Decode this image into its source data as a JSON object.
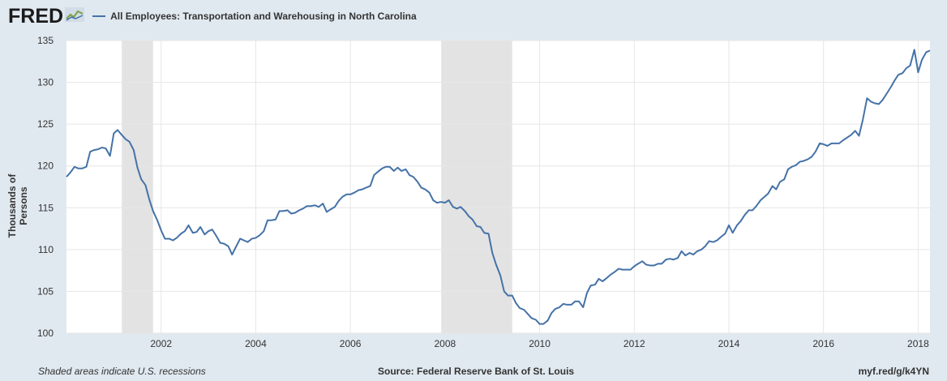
{
  "header": {
    "logo_text": "FRED",
    "legend_label": "All Employees: Transportation and Warehousing in North Carolina"
  },
  "footer": {
    "note": "Shaded areas indicate U.S. recessions",
    "source": "Source: Federal Reserve Bank of St. Louis",
    "link": "myf.red/g/k4YN"
  },
  "colors": {
    "line": "#4572a7",
    "recession": "#e3e3e3",
    "grid": "#e6e6e6",
    "background": "#e1e9f0"
  },
  "chart_data": {
    "type": "line",
    "title": "",
    "xlabel": "",
    "ylabel": "Thousands of Persons",
    "ylim": [
      100,
      135
    ],
    "xlim": [
      2000.0,
      2018.25
    ],
    "yticks": [
      100,
      105,
      110,
      115,
      120,
      125,
      130,
      135
    ],
    "xticks": [
      {
        "value": 2002,
        "label": "2002"
      },
      {
        "value": 2004,
        "label": "2004"
      },
      {
        "value": 2006,
        "label": "2006"
      },
      {
        "value": 2008,
        "label": "2008"
      },
      {
        "value": 2010,
        "label": "2010"
      },
      {
        "value": 2012,
        "label": "2012"
      },
      {
        "value": 2014,
        "label": "2014"
      },
      {
        "value": 2016,
        "label": "2016"
      },
      {
        "value": 2018,
        "label": "2018"
      }
    ],
    "recessions": [
      [
        2001.17,
        2001.83
      ],
      [
        2007.92,
        2009.42
      ]
    ],
    "grid": true,
    "series": [
      {
        "name": "All Employees: Transportation and Warehousing in North Carolina",
        "points": [
          [
            2000.0,
            118.7
          ],
          [
            2000.08,
            119.2
          ],
          [
            2000.17,
            119.9
          ],
          [
            2000.25,
            119.7
          ],
          [
            2000.33,
            119.7
          ],
          [
            2000.42,
            119.9
          ],
          [
            2000.5,
            121.7
          ],
          [
            2000.58,
            121.9
          ],
          [
            2000.67,
            122.0
          ],
          [
            2000.75,
            122.2
          ],
          [
            2000.83,
            122.1
          ],
          [
            2000.92,
            121.2
          ],
          [
            2001.0,
            123.9
          ],
          [
            2001.08,
            124.3
          ],
          [
            2001.17,
            123.7
          ],
          [
            2001.25,
            123.2
          ],
          [
            2001.33,
            122.9
          ],
          [
            2001.42,
            121.9
          ],
          [
            2001.5,
            119.8
          ],
          [
            2001.58,
            118.4
          ],
          [
            2001.67,
            117.7
          ],
          [
            2001.75,
            116.0
          ],
          [
            2001.83,
            114.6
          ],
          [
            2001.92,
            113.5
          ],
          [
            2002.0,
            112.3
          ],
          [
            2002.08,
            111.3
          ],
          [
            2002.17,
            111.3
          ],
          [
            2002.25,
            111.1
          ],
          [
            2002.33,
            111.4
          ],
          [
            2002.42,
            111.9
          ],
          [
            2002.5,
            112.2
          ],
          [
            2002.58,
            112.9
          ],
          [
            2002.67,
            112.0
          ],
          [
            2002.75,
            112.1
          ],
          [
            2002.83,
            112.7
          ],
          [
            2002.92,
            111.8
          ],
          [
            2003.0,
            112.2
          ],
          [
            2003.08,
            112.4
          ],
          [
            2003.17,
            111.6
          ],
          [
            2003.25,
            110.8
          ],
          [
            2003.33,
            110.7
          ],
          [
            2003.42,
            110.4
          ],
          [
            2003.5,
            109.4
          ],
          [
            2003.58,
            110.3
          ],
          [
            2003.67,
            111.3
          ],
          [
            2003.75,
            111.1
          ],
          [
            2003.83,
            110.9
          ],
          [
            2003.92,
            111.3
          ],
          [
            2004.0,
            111.4
          ],
          [
            2004.08,
            111.7
          ],
          [
            2004.17,
            112.2
          ],
          [
            2004.25,
            113.5
          ],
          [
            2004.33,
            113.5
          ],
          [
            2004.42,
            113.6
          ],
          [
            2004.5,
            114.6
          ],
          [
            2004.58,
            114.6
          ],
          [
            2004.67,
            114.7
          ],
          [
            2004.75,
            114.3
          ],
          [
            2004.83,
            114.4
          ],
          [
            2004.92,
            114.7
          ],
          [
            2005.0,
            114.9
          ],
          [
            2005.08,
            115.2
          ],
          [
            2005.17,
            115.2
          ],
          [
            2005.25,
            115.3
          ],
          [
            2005.33,
            115.1
          ],
          [
            2005.42,
            115.5
          ],
          [
            2005.5,
            114.5
          ],
          [
            2005.58,
            114.8
          ],
          [
            2005.67,
            115.1
          ],
          [
            2005.75,
            115.8
          ],
          [
            2005.83,
            116.3
          ],
          [
            2005.92,
            116.6
          ],
          [
            2006.0,
            116.6
          ],
          [
            2006.08,
            116.8
          ],
          [
            2006.17,
            117.1
          ],
          [
            2006.25,
            117.2
          ],
          [
            2006.33,
            117.4
          ],
          [
            2006.42,
            117.6
          ],
          [
            2006.5,
            118.9
          ],
          [
            2006.58,
            119.3
          ],
          [
            2006.67,
            119.7
          ],
          [
            2006.75,
            119.9
          ],
          [
            2006.83,
            119.9
          ],
          [
            2006.92,
            119.4
          ],
          [
            2007.0,
            119.8
          ],
          [
            2007.08,
            119.4
          ],
          [
            2007.17,
            119.6
          ],
          [
            2007.25,
            118.9
          ],
          [
            2007.33,
            118.7
          ],
          [
            2007.42,
            118.1
          ],
          [
            2007.5,
            117.4
          ],
          [
            2007.58,
            117.2
          ],
          [
            2007.67,
            116.8
          ],
          [
            2007.75,
            115.9
          ],
          [
            2007.83,
            115.6
          ],
          [
            2007.92,
            115.7
          ],
          [
            2008.0,
            115.6
          ],
          [
            2008.08,
            115.9
          ],
          [
            2008.17,
            115.1
          ],
          [
            2008.25,
            114.9
          ],
          [
            2008.33,
            115.1
          ],
          [
            2008.42,
            114.6
          ],
          [
            2008.5,
            114.0
          ],
          [
            2008.58,
            113.6
          ],
          [
            2008.67,
            112.8
          ],
          [
            2008.75,
            112.7
          ],
          [
            2008.83,
            112.0
          ],
          [
            2008.92,
            111.9
          ],
          [
            2009.0,
            109.6
          ],
          [
            2009.08,
            108.2
          ],
          [
            2009.17,
            106.9
          ],
          [
            2009.25,
            105.0
          ],
          [
            2009.33,
            104.5
          ],
          [
            2009.42,
            104.5
          ],
          [
            2009.5,
            103.6
          ],
          [
            2009.58,
            103.0
          ],
          [
            2009.67,
            102.8
          ],
          [
            2009.75,
            102.3
          ],
          [
            2009.83,
            101.8
          ],
          [
            2009.92,
            101.6
          ],
          [
            2010.0,
            101.1
          ],
          [
            2010.08,
            101.1
          ],
          [
            2010.17,
            101.5
          ],
          [
            2010.25,
            102.4
          ],
          [
            2010.33,
            102.9
          ],
          [
            2010.42,
            103.1
          ],
          [
            2010.5,
            103.5
          ],
          [
            2010.58,
            103.4
          ],
          [
            2010.67,
            103.4
          ],
          [
            2010.75,
            103.8
          ],
          [
            2010.83,
            103.8
          ],
          [
            2010.92,
            103.1
          ],
          [
            2011.0,
            104.8
          ],
          [
            2011.08,
            105.7
          ],
          [
            2011.17,
            105.8
          ],
          [
            2011.25,
            106.5
          ],
          [
            2011.33,
            106.2
          ],
          [
            2011.42,
            106.6
          ],
          [
            2011.5,
            107.0
          ],
          [
            2011.58,
            107.3
          ],
          [
            2011.67,
            107.7
          ],
          [
            2011.75,
            107.6
          ],
          [
            2011.83,
            107.6
          ],
          [
            2011.92,
            107.6
          ],
          [
            2012.0,
            108.0
          ],
          [
            2012.08,
            108.3
          ],
          [
            2012.17,
            108.6
          ],
          [
            2012.25,
            108.2
          ],
          [
            2012.33,
            108.1
          ],
          [
            2012.42,
            108.1
          ],
          [
            2012.5,
            108.3
          ],
          [
            2012.58,
            108.3
          ],
          [
            2012.67,
            108.8
          ],
          [
            2012.75,
            108.9
          ],
          [
            2012.83,
            108.8
          ],
          [
            2012.92,
            109.0
          ],
          [
            2013.0,
            109.8
          ],
          [
            2013.08,
            109.3
          ],
          [
            2013.17,
            109.6
          ],
          [
            2013.25,
            109.4
          ],
          [
            2013.33,
            109.8
          ],
          [
            2013.42,
            110.0
          ],
          [
            2013.5,
            110.4
          ],
          [
            2013.58,
            111.0
          ],
          [
            2013.67,
            110.9
          ],
          [
            2013.75,
            111.1
          ],
          [
            2013.83,
            111.5
          ],
          [
            2013.92,
            111.9
          ],
          [
            2014.0,
            112.9
          ],
          [
            2014.08,
            112.0
          ],
          [
            2014.17,
            112.9
          ],
          [
            2014.25,
            113.4
          ],
          [
            2014.33,
            114.1
          ],
          [
            2014.42,
            114.7
          ],
          [
            2014.5,
            114.7
          ],
          [
            2014.58,
            115.2
          ],
          [
            2014.67,
            115.9
          ],
          [
            2014.75,
            116.3
          ],
          [
            2014.83,
            116.7
          ],
          [
            2014.92,
            117.6
          ],
          [
            2015.0,
            117.2
          ],
          [
            2015.08,
            118.1
          ],
          [
            2015.17,
            118.4
          ],
          [
            2015.25,
            119.6
          ],
          [
            2015.33,
            119.9
          ],
          [
            2015.42,
            120.1
          ],
          [
            2015.5,
            120.5
          ],
          [
            2015.58,
            120.6
          ],
          [
            2015.67,
            120.8
          ],
          [
            2015.75,
            121.1
          ],
          [
            2015.83,
            121.7
          ],
          [
            2015.92,
            122.7
          ],
          [
            2016.0,
            122.6
          ],
          [
            2016.08,
            122.4
          ],
          [
            2016.17,
            122.7
          ],
          [
            2016.25,
            122.7
          ],
          [
            2016.33,
            122.7
          ],
          [
            2016.42,
            123.1
          ],
          [
            2016.5,
            123.4
          ],
          [
            2016.58,
            123.7
          ],
          [
            2016.67,
            124.2
          ],
          [
            2016.75,
            123.6
          ],
          [
            2016.83,
            125.5
          ],
          [
            2016.92,
            128.1
          ],
          [
            2017.0,
            127.7
          ],
          [
            2017.08,
            127.5
          ],
          [
            2017.17,
            127.4
          ],
          [
            2017.25,
            127.9
          ],
          [
            2017.33,
            128.6
          ],
          [
            2017.42,
            129.4
          ],
          [
            2017.5,
            130.2
          ],
          [
            2017.58,
            130.9
          ],
          [
            2017.67,
            131.1
          ],
          [
            2017.75,
            131.7
          ],
          [
            2017.83,
            132.0
          ],
          [
            2017.92,
            133.9
          ],
          [
            2018.0,
            131.2
          ],
          [
            2018.08,
            132.7
          ],
          [
            2018.17,
            133.6
          ],
          [
            2018.25,
            133.8
          ]
        ]
      }
    ]
  }
}
